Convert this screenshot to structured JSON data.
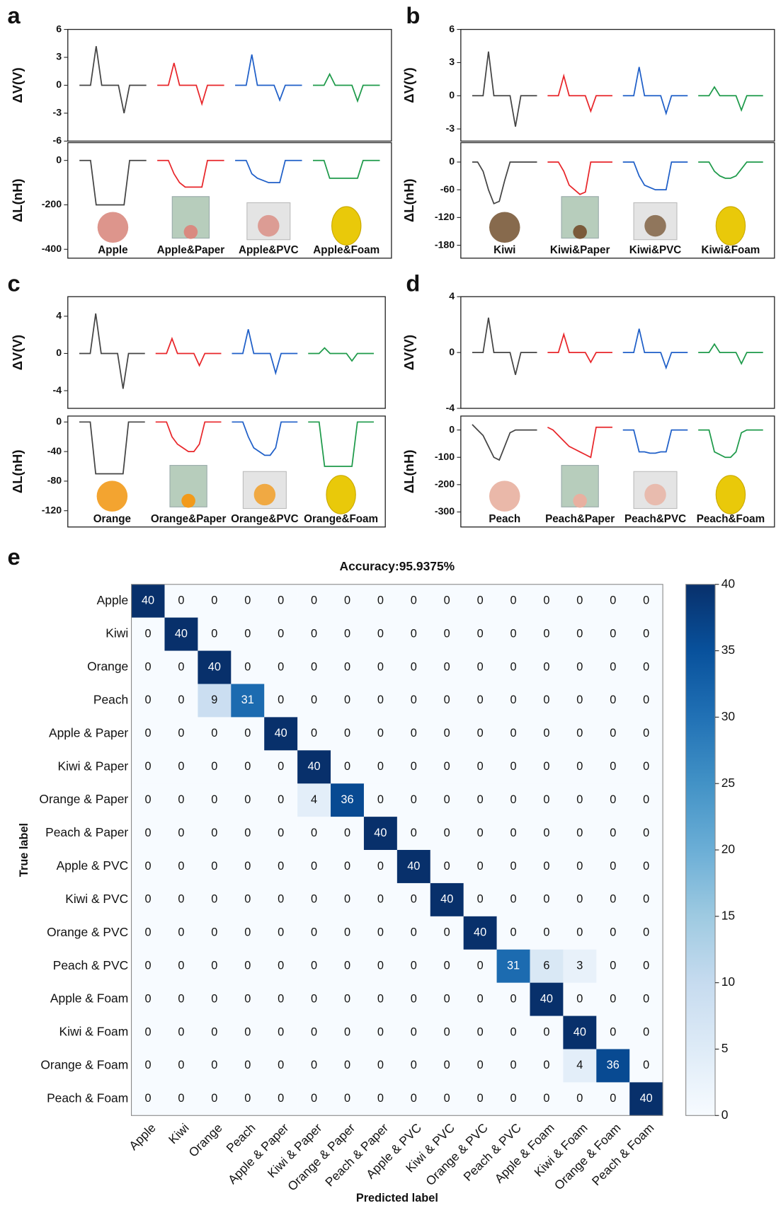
{
  "chart_data": [
    {
      "type": "signal",
      "panel": "a",
      "categories": [
        "Apple",
        "Apple&Paper",
        "Apple&PVC",
        "Apple&Foam"
      ],
      "subplots": [
        {
          "ylabel": "ΔV(V)",
          "ylim": [
            -6,
            6
          ],
          "yticks": [
            -6,
            -3,
            0,
            3,
            6
          ],
          "series": [
            {
              "color": "#444444",
              "values": [
                0,
                0,
                0,
                4.2,
                0,
                0,
                0,
                0,
                -3.0,
                0,
                0,
                0,
                0
              ]
            },
            {
              "color": "#e8262a",
              "values": [
                0,
                0,
                0,
                2.4,
                0,
                0,
                0,
                0,
                -2.0,
                0,
                0,
                0,
                0
              ]
            },
            {
              "color": "#1f5fc8",
              "values": [
                0,
                0,
                0,
                3.3,
                0,
                0,
                0,
                0,
                -1.6,
                0,
                0,
                0,
                0
              ]
            },
            {
              "color": "#1e9a4a",
              "values": [
                0,
                0,
                0,
                1.2,
                0,
                0,
                0,
                0,
                -1.7,
                0,
                0,
                0,
                0
              ]
            }
          ]
        },
        {
          "ylabel": "ΔL(nH)",
          "ylim": [
            -440,
            80
          ],
          "yticks": [
            -400,
            -200,
            0
          ],
          "series": [
            {
              "color": "#444444",
              "values": [
                0,
                0,
                0,
                -200,
                -200,
                -200,
                -200,
                -200,
                -200,
                0,
                0,
                0,
                0
              ]
            },
            {
              "color": "#e8262a",
              "values": [
                0,
                0,
                0,
                -60,
                -100,
                -120,
                -120,
                -120,
                -120,
                0,
                0,
                0,
                0
              ]
            },
            {
              "color": "#1f5fc8",
              "values": [
                0,
                0,
                0,
                -60,
                -80,
                -90,
                -100,
                -100,
                -100,
                0,
                0,
                0,
                0
              ]
            },
            {
              "color": "#1e9a4a",
              "values": [
                0,
                0,
                0,
                -80,
                -80,
                -80,
                -80,
                -80,
                -80,
                0,
                0,
                0,
                0
              ]
            }
          ]
        }
      ]
    },
    {
      "type": "signal",
      "panel": "b",
      "categories": [
        "Kiwi",
        "Kiwi&Paper",
        "Kiwi&PVC",
        "Kiwi&Foam"
      ],
      "subplots": [
        {
          "ylabel": "ΔV(V)",
          "ylim": [
            -4.1,
            6
          ],
          "yticks": [
            -3,
            0,
            3,
            6
          ],
          "series": [
            {
              "color": "#444444",
              "values": [
                0,
                0,
                0,
                4.0,
                0,
                0,
                0,
                0,
                -2.8,
                0,
                0,
                0,
                0
              ]
            },
            {
              "color": "#e8262a",
              "values": [
                0,
                0,
                0,
                1.8,
                0,
                0,
                0,
                0,
                -1.4,
                0,
                0,
                0,
                0
              ]
            },
            {
              "color": "#1f5fc8",
              "values": [
                0,
                0,
                0,
                2.6,
                0,
                0,
                0,
                0,
                -1.6,
                0,
                0,
                0,
                0
              ]
            },
            {
              "color": "#1e9a4a",
              "values": [
                0,
                0,
                0,
                0.8,
                0,
                0,
                0,
                0,
                -1.3,
                0,
                0,
                0,
                0
              ]
            }
          ]
        },
        {
          "ylabel": "ΔL(nH)",
          "ylim": [
            -208,
            42
          ],
          "yticks": [
            -180,
            -120,
            -60,
            0
          ],
          "series": [
            {
              "color": "#444444",
              "values": [
                0,
                0,
                -20,
                -60,
                -90,
                -85,
                -40,
                0,
                0,
                0,
                0,
                0,
                0
              ]
            },
            {
              "color": "#e8262a",
              "values": [
                0,
                0,
                0,
                -20,
                -50,
                -60,
                -70,
                -65,
                0,
                0,
                0,
                0,
                0
              ]
            },
            {
              "color": "#1f5fc8",
              "values": [
                0,
                0,
                0,
                -30,
                -50,
                -55,
                -60,
                -60,
                -60,
                0,
                0,
                0,
                0
              ]
            },
            {
              "color": "#1e9a4a",
              "values": [
                0,
                0,
                0,
                -20,
                -30,
                -35,
                -35,
                -30,
                -15,
                0,
                0,
                0,
                0
              ]
            }
          ]
        }
      ]
    },
    {
      "type": "signal",
      "panel": "c",
      "categories": [
        "Orange",
        "Orange&Paper",
        "Orange&PVC",
        "Orange&Foam"
      ],
      "subplots": [
        {
          "ylabel": "ΔV(V)",
          "ylim": [
            -5.9,
            6.1
          ],
          "yticks": [
            -4,
            0,
            4
          ],
          "series": [
            {
              "color": "#444444",
              "values": [
                0,
                0,
                0,
                4.3,
                0,
                0,
                0,
                0,
                -3.8,
                0,
                0,
                0,
                0
              ]
            },
            {
              "color": "#e8262a",
              "values": [
                0,
                0,
                0,
                1.6,
                0,
                0,
                0,
                0,
                -1.3,
                0,
                0,
                0,
                0
              ]
            },
            {
              "color": "#1f5fc8",
              "values": [
                0,
                0,
                0,
                2.6,
                0,
                0,
                0,
                0,
                -2.1,
                0,
                0,
                0,
                0
              ]
            },
            {
              "color": "#1e9a4a",
              "values": [
                0,
                0,
                0,
                0.6,
                0,
                0,
                0,
                0,
                -0.8,
                0,
                0,
                0,
                0
              ]
            }
          ]
        },
        {
          "ylabel": "ΔL(nH)",
          "ylim": [
            -142,
            8
          ],
          "yticks": [
            -120,
            -80,
            -40,
            0
          ],
          "series": [
            {
              "color": "#444444",
              "values": [
                0,
                0,
                0,
                -70,
                -70,
                -70,
                -70,
                -70,
                -70,
                0,
                0,
                0,
                0
              ]
            },
            {
              "color": "#e8262a",
              "values": [
                0,
                0,
                0,
                -20,
                -30,
                -35,
                -40,
                -40,
                -30,
                0,
                0,
                0,
                0
              ]
            },
            {
              "color": "#1f5fc8",
              "values": [
                0,
                0,
                0,
                -20,
                -35,
                -40,
                -45,
                -45,
                -35,
                0,
                0,
                0,
                0
              ]
            },
            {
              "color": "#1e9a4a",
              "values": [
                0,
                0,
                0,
                -60,
                -60,
                -60,
                -60,
                -60,
                -60,
                0,
                0,
                0,
                0
              ]
            }
          ]
        }
      ]
    },
    {
      "type": "signal",
      "panel": "d",
      "categories": [
        "Peach",
        "Peach&Paper",
        "Peach&PVC",
        "Peach&Foam"
      ],
      "subplots": [
        {
          "ylabel": "ΔV(V)",
          "ylim": [
            -4,
            4
          ],
          "yticks": [
            -4,
            0,
            4
          ],
          "series": [
            {
              "color": "#444444",
              "values": [
                0,
                0,
                0,
                2.5,
                0,
                0,
                0,
                0,
                -1.6,
                0,
                0,
                0,
                0
              ]
            },
            {
              "color": "#e8262a",
              "values": [
                0,
                0,
                0,
                1.3,
                0,
                0,
                0,
                0,
                -0.7,
                0,
                0,
                0,
                0
              ]
            },
            {
              "color": "#1f5fc8",
              "values": [
                0,
                0,
                0,
                1.7,
                0,
                0,
                0,
                0,
                -1.1,
                0,
                0,
                0,
                0
              ]
            },
            {
              "color": "#1e9a4a",
              "values": [
                0,
                0,
                0,
                0.6,
                0,
                0,
                0,
                0,
                -0.8,
                0,
                0,
                0,
                0
              ]
            }
          ]
        },
        {
          "ylabel": "ΔL(nH)",
          "ylim": [
            -355,
            51
          ],
          "yticks": [
            -300,
            -200,
            -100,
            0
          ],
          "series": [
            {
              "color": "#444444",
              "values": [
                20,
                0,
                -20,
                -60,
                -100,
                -110,
                -60,
                -10,
                0,
                0,
                0,
                0,
                0
              ]
            },
            {
              "color": "#e8262a",
              "values": [
                10,
                0,
                -20,
                -40,
                -60,
                -70,
                -80,
                -90,
                -100,
                10,
                10,
                10,
                10
              ]
            },
            {
              "color": "#1f5fc8",
              "values": [
                0,
                0,
                0,
                -80,
                -80,
                -85,
                -85,
                -80,
                -80,
                0,
                0,
                0,
                0
              ]
            },
            {
              "color": "#1e9a4a",
              "values": [
                0,
                0,
                0,
                -80,
                -90,
                -100,
                -100,
                -80,
                -10,
                0,
                0,
                0,
                0
              ]
            }
          ]
        }
      ]
    },
    {
      "type": "heatmap",
      "panel": "e",
      "title": "Accuracy:95.9375%",
      "xlabel": "Predicted label",
      "ylabel": "True label",
      "categories": [
        "Apple",
        "Kiwi",
        "Orange",
        "Peach",
        "Apple & Paper",
        "Kiwi & Paper",
        "Orange & Paper",
        "Peach & Paper",
        "Apple & PVC",
        "Kiwi & PVC",
        "Orange & PVC",
        "Peach & PVC",
        "Apple & Foam",
        "Kiwi & Foam",
        "Orange & Foam",
        "Peach & Foam"
      ],
      "values": [
        [
          40,
          0,
          0,
          0,
          0,
          0,
          0,
          0,
          0,
          0,
          0,
          0,
          0,
          0,
          0,
          0
        ],
        [
          0,
          40,
          0,
          0,
          0,
          0,
          0,
          0,
          0,
          0,
          0,
          0,
          0,
          0,
          0,
          0
        ],
        [
          0,
          0,
          40,
          0,
          0,
          0,
          0,
          0,
          0,
          0,
          0,
          0,
          0,
          0,
          0,
          0
        ],
        [
          0,
          0,
          9,
          31,
          0,
          0,
          0,
          0,
          0,
          0,
          0,
          0,
          0,
          0,
          0,
          0
        ],
        [
          0,
          0,
          0,
          0,
          40,
          0,
          0,
          0,
          0,
          0,
          0,
          0,
          0,
          0,
          0,
          0
        ],
        [
          0,
          0,
          0,
          0,
          0,
          40,
          0,
          0,
          0,
          0,
          0,
          0,
          0,
          0,
          0,
          0
        ],
        [
          0,
          0,
          0,
          0,
          0,
          4,
          36,
          0,
          0,
          0,
          0,
          0,
          0,
          0,
          0,
          0
        ],
        [
          0,
          0,
          0,
          0,
          0,
          0,
          0,
          40,
          0,
          0,
          0,
          0,
          0,
          0,
          0,
          0
        ],
        [
          0,
          0,
          0,
          0,
          0,
          0,
          0,
          0,
          40,
          0,
          0,
          0,
          0,
          0,
          0,
          0
        ],
        [
          0,
          0,
          0,
          0,
          0,
          0,
          0,
          0,
          0,
          40,
          0,
          0,
          0,
          0,
          0,
          0
        ],
        [
          0,
          0,
          0,
          0,
          0,
          0,
          0,
          0,
          0,
          0,
          40,
          0,
          0,
          0,
          0,
          0
        ],
        [
          0,
          0,
          0,
          0,
          0,
          0,
          0,
          0,
          0,
          0,
          0,
          31,
          6,
          3,
          0,
          0
        ],
        [
          0,
          0,
          0,
          0,
          0,
          0,
          0,
          0,
          0,
          0,
          0,
          0,
          40,
          0,
          0,
          0
        ],
        [
          0,
          0,
          0,
          0,
          0,
          0,
          0,
          0,
          0,
          0,
          0,
          0,
          0,
          40,
          0,
          0
        ],
        [
          0,
          0,
          0,
          0,
          0,
          0,
          0,
          0,
          0,
          0,
          0,
          0,
          0,
          4,
          36,
          0
        ],
        [
          0,
          0,
          0,
          0,
          0,
          0,
          0,
          0,
          0,
          0,
          0,
          0,
          0,
          0,
          0,
          40
        ]
      ],
      "colorbar": {
        "lim": [
          0,
          40
        ],
        "ticks": [
          0,
          5,
          10,
          15,
          20,
          25,
          30,
          35,
          40
        ]
      }
    }
  ]
}
